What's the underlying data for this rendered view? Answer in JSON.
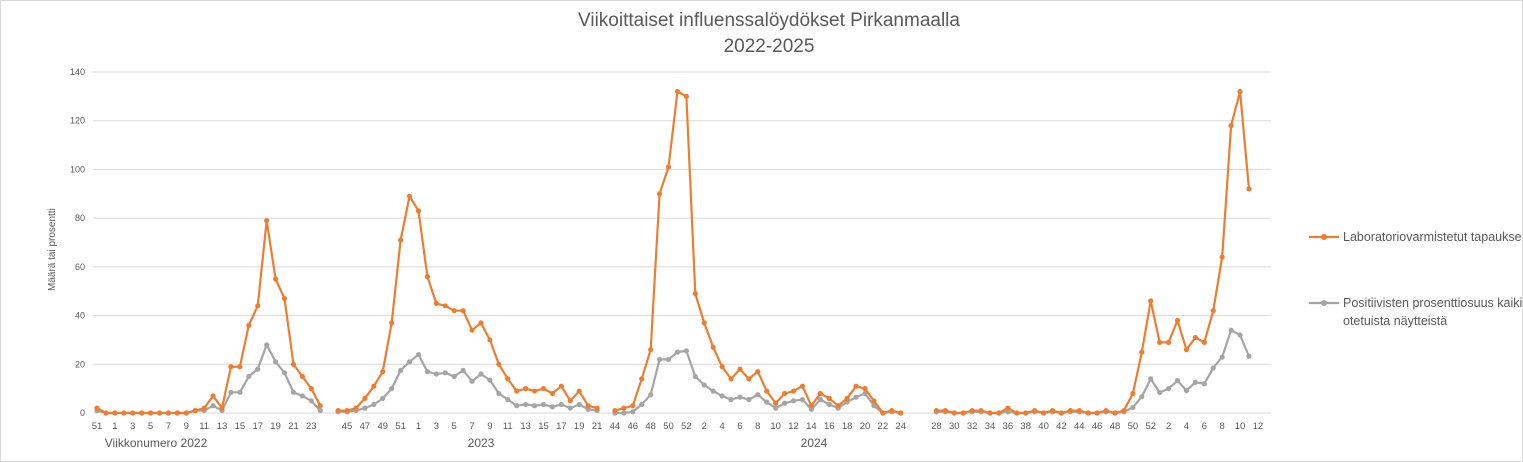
{
  "chart_data": {
    "type": "line",
    "title": [
      "Viikoittaiset influenssalöydökset Pirkanmaalla",
      "2022-2025"
    ],
    "ylabel": "Määrä tai prosentti",
    "ylim": [
      0,
      140
    ],
    "yticks": [
      0,
      20,
      40,
      60,
      80,
      100,
      120,
      140
    ],
    "grid": true,
    "legend_position": "right",
    "year_labels": [
      "Viikkonumero 2022",
      "2023",
      "2024"
    ],
    "segments": [
      {
        "weeks": [
          "51",
          "52",
          "1",
          "2",
          "3",
          "4",
          "5",
          "6",
          "7",
          "8",
          "9",
          "10",
          "11",
          "12",
          "13",
          "14",
          "15",
          "16",
          "17",
          "18",
          "19",
          "20",
          "21",
          "22",
          "23",
          "24"
        ],
        "cases": [
          2,
          0,
          0,
          0,
          0,
          0,
          0,
          0,
          0,
          0,
          0,
          1,
          2,
          7,
          2,
          19,
          19,
          36,
          44,
          79,
          55,
          47,
          20,
          15,
          10,
          3
        ],
        "positive_pct": [
          1,
          0,
          0,
          0,
          0,
          0,
          0,
          0,
          0,
          0,
          0,
          1,
          1,
          3,
          1,
          8.5,
          8.5,
          15,
          18,
          28,
          21,
          16.5,
          8.5,
          7,
          5,
          1
        ]
      },
      {
        "weeks": [
          "44",
          "45",
          "46",
          "47",
          "48",
          "49",
          "50",
          "51",
          "52",
          "1",
          "2",
          "3",
          "4",
          "5",
          "6",
          "7",
          "8",
          "9",
          "10",
          "11",
          "12",
          "13",
          "14",
          "15",
          "16",
          "17",
          "18",
          "19",
          "20",
          "21"
        ],
        "cases": [
          1,
          1,
          2,
          6,
          11,
          17,
          37,
          71,
          89,
          83,
          56,
          45,
          44,
          42,
          42,
          34,
          37,
          30,
          20,
          14,
          9,
          10,
          9,
          10,
          8,
          11,
          5,
          9,
          3,
          2
        ],
        "positive_pct": [
          0.5,
          0.5,
          1,
          2,
          3.5,
          6,
          10,
          17.5,
          21,
          24,
          17,
          16,
          16.5,
          15,
          17.5,
          13,
          16,
          13.5,
          8,
          5.5,
          3,
          3.5,
          3,
          3.5,
          2.5,
          3.5,
          2,
          3.5,
          1.5,
          1
        ]
      },
      {
        "weeks": [
          "44",
          "45",
          "46",
          "47",
          "48",
          "49",
          "50",
          "51",
          "52",
          "1",
          "2",
          "3",
          "4",
          "5",
          "6",
          "7",
          "8",
          "9",
          "10",
          "11",
          "12",
          "13",
          "14",
          "15",
          "16",
          "17",
          "18",
          "19",
          "20",
          "21",
          "22",
          "23",
          "24"
        ],
        "cases": [
          1,
          2,
          3,
          14,
          26,
          90,
          101,
          132,
          130,
          49,
          37,
          27,
          19,
          14,
          18,
          14,
          17,
          9,
          4,
          8,
          9,
          11,
          3,
          8,
          6,
          3,
          6,
          11,
          10,
          5,
          0,
          1,
          0
        ],
        "positive_pct": [
          0,
          0,
          0.5,
          3.5,
          7.5,
          22,
          22,
          25,
          25.5,
          15,
          11.5,
          9,
          7,
          5.5,
          6.5,
          5.5,
          7.5,
          4.5,
          2,
          4,
          5,
          5.5,
          1.5,
          5.5,
          3.5,
          2,
          4.5,
          6.5,
          8,
          3,
          0,
          0.5,
          0
        ]
      },
      {
        "weeks": [
          "28",
          "29",
          "30",
          "31",
          "32",
          "33",
          "34",
          "35",
          "36",
          "37",
          "38",
          "39",
          "40",
          "41",
          "42",
          "43",
          "44",
          "45",
          "46",
          "47",
          "48",
          "49",
          "50",
          "51",
          "52",
          "1",
          "2",
          "3",
          "4",
          "5",
          "6",
          "7",
          "8",
          "9",
          "10",
          "11",
          "12"
        ],
        "cases": [
          1,
          1,
          0,
          0,
          1,
          1,
          0,
          0,
          2,
          0,
          0,
          1,
          0,
          1,
          0,
          1,
          1,
          0,
          0,
          1,
          0,
          1,
          8,
          25,
          46,
          29,
          29,
          38,
          26,
          31,
          29,
          42,
          64,
          118,
          132,
          92,
          null
        ],
        "positive_pct": [
          0.5,
          0.5,
          0,
          0,
          0.5,
          0.5,
          0,
          0,
          0.5,
          0,
          0,
          0.5,
          0,
          0.5,
          0,
          0.5,
          0.5,
          0,
          0,
          0.5,
          0,
          0.5,
          2.3,
          6.7,
          14,
          8.4,
          10,
          13.3,
          9.2,
          12.6,
          12,
          18.5,
          23,
          34,
          32,
          23.3,
          null
        ]
      }
    ],
    "series": [
      {
        "name": "Laboratoriovarmistetut tapaukset",
        "key": "cases",
        "color": "#ED7D31"
      },
      {
        "name": "Positiivisten prosenttiosuus kaikista otetuista näytteistä",
        "key": "positive_pct",
        "color": "#A5A5A5"
      }
    ]
  }
}
